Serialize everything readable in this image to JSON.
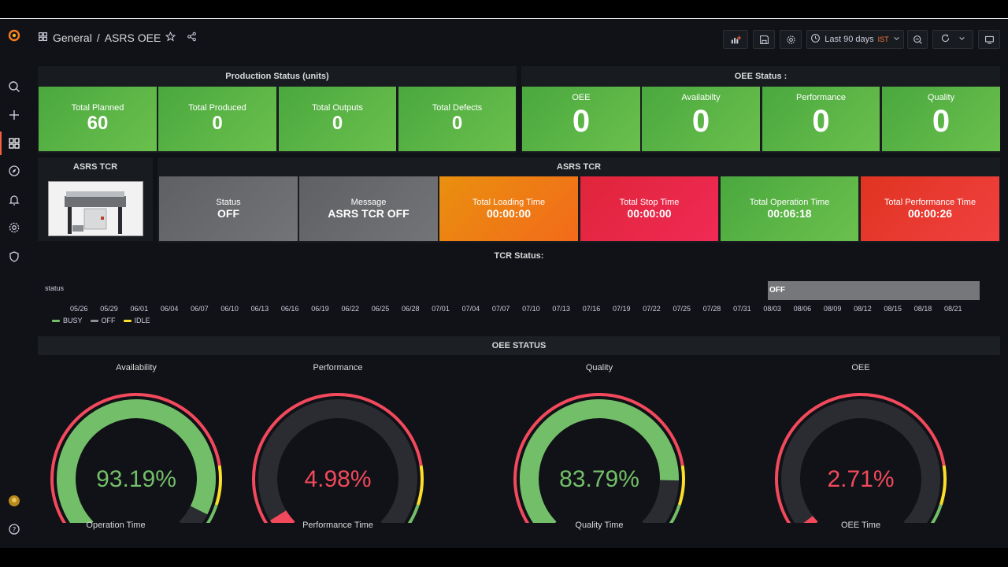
{
  "header": {
    "breadcrumb_folder": "General",
    "breadcrumb_sep": "/",
    "dashboard_title": "ASRS OEE",
    "time_range": "Last 90 days",
    "timezone": "IST"
  },
  "production": {
    "title": "Production Status (units)",
    "stats": [
      {
        "label": "Total Planned",
        "value": "60"
      },
      {
        "label": "Total Produced",
        "value": "0"
      },
      {
        "label": "Total Outputs",
        "value": "0"
      },
      {
        "label": "Total Defects",
        "value": "0"
      }
    ]
  },
  "oee_status": {
    "title": "OEE Status :",
    "stats": [
      {
        "label": "OEE",
        "value": "0"
      },
      {
        "label": "Availabilty",
        "value": "0"
      },
      {
        "label": "Performance",
        "value": "0"
      },
      {
        "label": "Quality",
        "value": "0"
      }
    ]
  },
  "image_panel": {
    "title": "ASRS TCR"
  },
  "tcr": {
    "title": "ASRS TCR",
    "stats": [
      {
        "label": "Status",
        "value": "OFF",
        "color": "#6a6b6e"
      },
      {
        "label": "Message",
        "value": "ASRS TCR OFF",
        "color": "#6a6b6e"
      },
      {
        "label": "Total Loading Time",
        "value": "00:00:00",
        "color": "#ee7d15"
      },
      {
        "label": "Total Stop Time",
        "value": "00:00:00",
        "color": "#e82847"
      },
      {
        "label": "Total Operation Time",
        "value": "00:06:18",
        "color": "#56b043"
      },
      {
        "label": "Total Performance Time",
        "value": "00:00:26",
        "color": "#e63a2d"
      }
    ]
  },
  "timeline": {
    "title": "TCR Status:",
    "row_label": "status",
    "state_label": "OFF",
    "ticks": [
      "05/26",
      "05/29",
      "06/01",
      "06/04",
      "06/07",
      "06/10",
      "06/13",
      "06/16",
      "06/19",
      "06/22",
      "06/25",
      "06/28",
      "07/01",
      "07/04",
      "07/07",
      "07/10",
      "07/13",
      "07/16",
      "07/19",
      "07/22",
      "07/25",
      "07/28",
      "07/31",
      "08/03",
      "08/06",
      "08/09",
      "08/12",
      "08/15",
      "08/18",
      "08/21"
    ],
    "legend": [
      {
        "name": "BUSY",
        "color": "#73bf69"
      },
      {
        "name": "OFF",
        "color": "#8e8e8e"
      },
      {
        "name": "IDLE",
        "color": "#fade2a"
      }
    ]
  },
  "oee_gauges": {
    "title": "OEE STATUS",
    "gauges": [
      {
        "title": "Availability",
        "value": 93.19,
        "display": "93.19%",
        "color": "#73bf69",
        "subtitle": "Operation Time"
      },
      {
        "title": "Performance",
        "value": 4.98,
        "display": "4.98%",
        "color": "#f2495c",
        "subtitle": "Performance Time"
      },
      {
        "title": "Quality",
        "value": 83.79,
        "display": "83.79%",
        "color": "#73bf69",
        "subtitle": "Quality Time"
      },
      {
        "title": "OEE",
        "value": 2.71,
        "display": "2.71%",
        "color": "#f2495c",
        "subtitle": "OEE Time"
      }
    ]
  }
}
